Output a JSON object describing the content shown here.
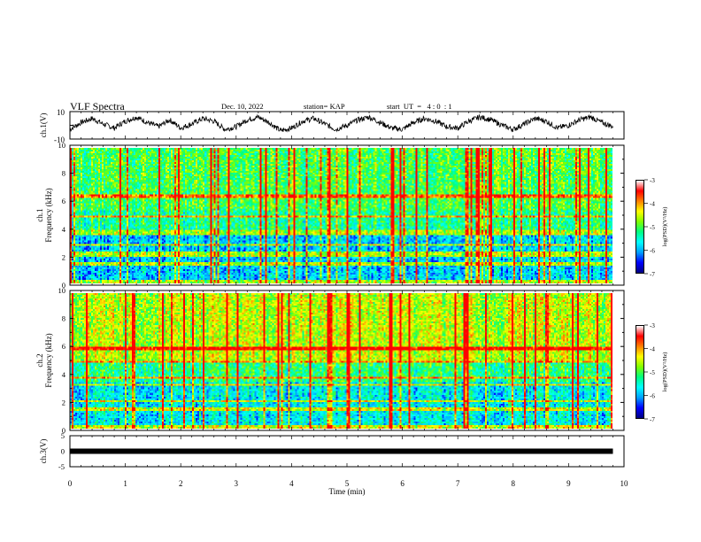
{
  "header": {
    "title": "VLF Spectra",
    "date": "Dec. 10, 2022",
    "station": "station= KAP",
    "start": "start  UT  =   4 : 0  : 1"
  },
  "colors": {
    "axis": "#000000",
    "trace": "#000000",
    "colormap": [
      "#000080",
      "#0000ff",
      "#00a0ff",
      "#00ffff",
      "#00ff80",
      "#80ff00",
      "#ffff00",
      "#ff8000",
      "#ff0000",
      "#ffffff"
    ]
  },
  "chart_data": [
    {
      "type": "line",
      "ylabel": "ch.1(V)",
      "ylim": [
        -10,
        10
      ],
      "yticks": [
        "10",
        "-10"
      ],
      "xlim": [
        0,
        10
      ],
      "series": [
        {
          "x": [
            0,
            0.2,
            0.4,
            0.6,
            0.8,
            1.0,
            1.2,
            1.4,
            1.6,
            1.8,
            2.0,
            2.2,
            2.4,
            2.6,
            2.8,
            3.0,
            3.2,
            3.4,
            3.6,
            3.8,
            4.0,
            4.2,
            4.4,
            4.6,
            4.8,
            5.0,
            5.2,
            5.4,
            5.6,
            5.8,
            6.0,
            6.2,
            6.4,
            6.6,
            6.8,
            7.0,
            7.2,
            7.4,
            7.6,
            7.8,
            8.0,
            8.2,
            8.4,
            8.6,
            8.8,
            9.0,
            9.2,
            9.4,
            9.6,
            9.8
          ],
          "y": [
            -3,
            2,
            5,
            1,
            -2,
            3,
            6,
            2,
            -1,
            4,
            -2,
            1,
            5,
            3,
            -3,
            -1,
            4,
            6,
            2,
            -4,
            -2,
            3,
            5,
            1,
            -3,
            0,
            4,
            6,
            2,
            -2,
            -3,
            2,
            5,
            3,
            -1,
            -2,
            3,
            6,
            4,
            0,
            -3,
            1,
            5,
            3,
            -2,
            0,
            4,
            6,
            2,
            -1
          ]
        }
      ]
    },
    {
      "type": "heatmap",
      "name": "ch.1",
      "ylabel": "ch.1\nFrequency  (kHz)",
      "xlim": [
        0,
        10
      ],
      "ylim": [
        0,
        10
      ],
      "yticks": [
        "0",
        "2",
        "4",
        "6",
        "8",
        "10"
      ],
      "colorbar": {
        "label": "log(PSD)(V²/Hz)",
        "range": [
          -7,
          -3
        ],
        "ticks": [
          "-3",
          "-4",
          "-5",
          "-6",
          "-7"
        ]
      },
      "bands_khz": [
        0.2,
        1.5,
        2.1,
        2.3,
        2.9,
        3.7,
        3.9,
        5.0,
        6.5
      ]
    },
    {
      "type": "heatmap",
      "name": "ch.2",
      "ylabel": "ch.2\nFrequency  (kHz)",
      "xlim": [
        0,
        10
      ],
      "ylim": [
        0,
        10
      ],
      "yticks": [
        "0",
        "2",
        "4",
        "6",
        "8",
        "10"
      ],
      "colorbar": {
        "label": "log(PSD)(V²/Hz)",
        "range": [
          -7,
          -3
        ],
        "ticks": [
          "-3",
          "-4",
          "-5",
          "-6",
          "-7"
        ]
      },
      "bands_khz": [
        0.2,
        1.5,
        2.1,
        3.3,
        3.8,
        5.0,
        6.0
      ]
    },
    {
      "type": "line",
      "ylabel": "ch.3(V)",
      "ylim": [
        -5,
        5
      ],
      "yticks": [
        "5",
        "0",
        "-5"
      ],
      "xlim": [
        0,
        10
      ],
      "xlabel": "Time  (min)",
      "xticks": [
        "0",
        "1",
        "2",
        "3",
        "4",
        "5",
        "6",
        "7",
        "8",
        "9",
        "10"
      ],
      "series": [
        {
          "x": [
            0,
            9.8
          ],
          "y": [
            0,
            0
          ]
        }
      ]
    }
  ]
}
